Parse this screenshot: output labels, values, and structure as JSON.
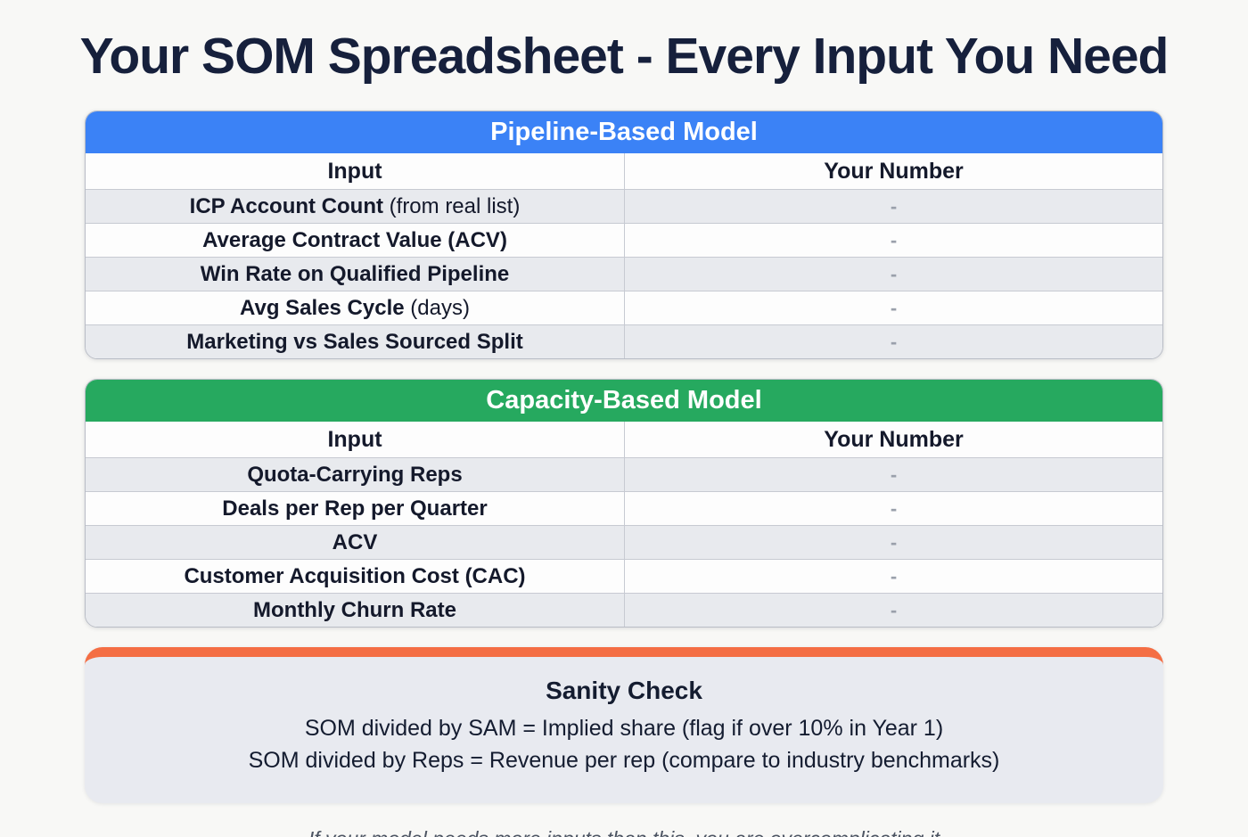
{
  "page": {
    "title": "Your SOM Spreadsheet - Every Input You Need",
    "footer_note": "If your model needs more inputs than this, you are overcomplicating it"
  },
  "colors": {
    "pipeline_header": "#3b82f6",
    "capacity_header": "#26a95f",
    "sanity_accent": "#f46e44",
    "title_text": "#16203c",
    "row_alt_bg": "#e8eaee",
    "value_dash": "#9aa0ab"
  },
  "tables": [
    {
      "title": "Pipeline-Based Model",
      "columns": [
        "Input",
        "Your Number"
      ],
      "rows": [
        {
          "label_bold": "ICP Account Count",
          "label_normal": " (from real list)",
          "value": "-"
        },
        {
          "label_bold": "Average Contract Value (ACV)",
          "label_normal": "",
          "value": "-"
        },
        {
          "label_bold": "Win Rate on Qualified Pipeline",
          "label_normal": "",
          "value": "-"
        },
        {
          "label_bold": "Avg Sales Cycle",
          "label_normal": " (days)",
          "value": "-"
        },
        {
          "label_bold": "Marketing vs Sales Sourced Split",
          "label_normal": "",
          "value": "-"
        }
      ]
    },
    {
      "title": "Capacity-Based Model",
      "columns": [
        "Input",
        "Your Number"
      ],
      "rows": [
        {
          "label_bold": "Quota-Carrying Reps",
          "label_normal": "",
          "value": "-"
        },
        {
          "label_bold": "Deals per Rep per Quarter",
          "label_normal": "",
          "value": "-"
        },
        {
          "label_bold": "ACV",
          "label_normal": "",
          "value": "-"
        },
        {
          "label_bold": "Customer Acquisition Cost (CAC)",
          "label_normal": "",
          "value": "-"
        },
        {
          "label_bold": "Monthly Churn Rate",
          "label_normal": "",
          "value": "-"
        }
      ]
    }
  ],
  "sanity_check": {
    "title": "Sanity Check",
    "lines": [
      "SOM divided by SAM = Implied share (flag if over 10% in Year 1)",
      "SOM divided by Reps = Revenue per rep (compare to industry benchmarks)"
    ]
  }
}
